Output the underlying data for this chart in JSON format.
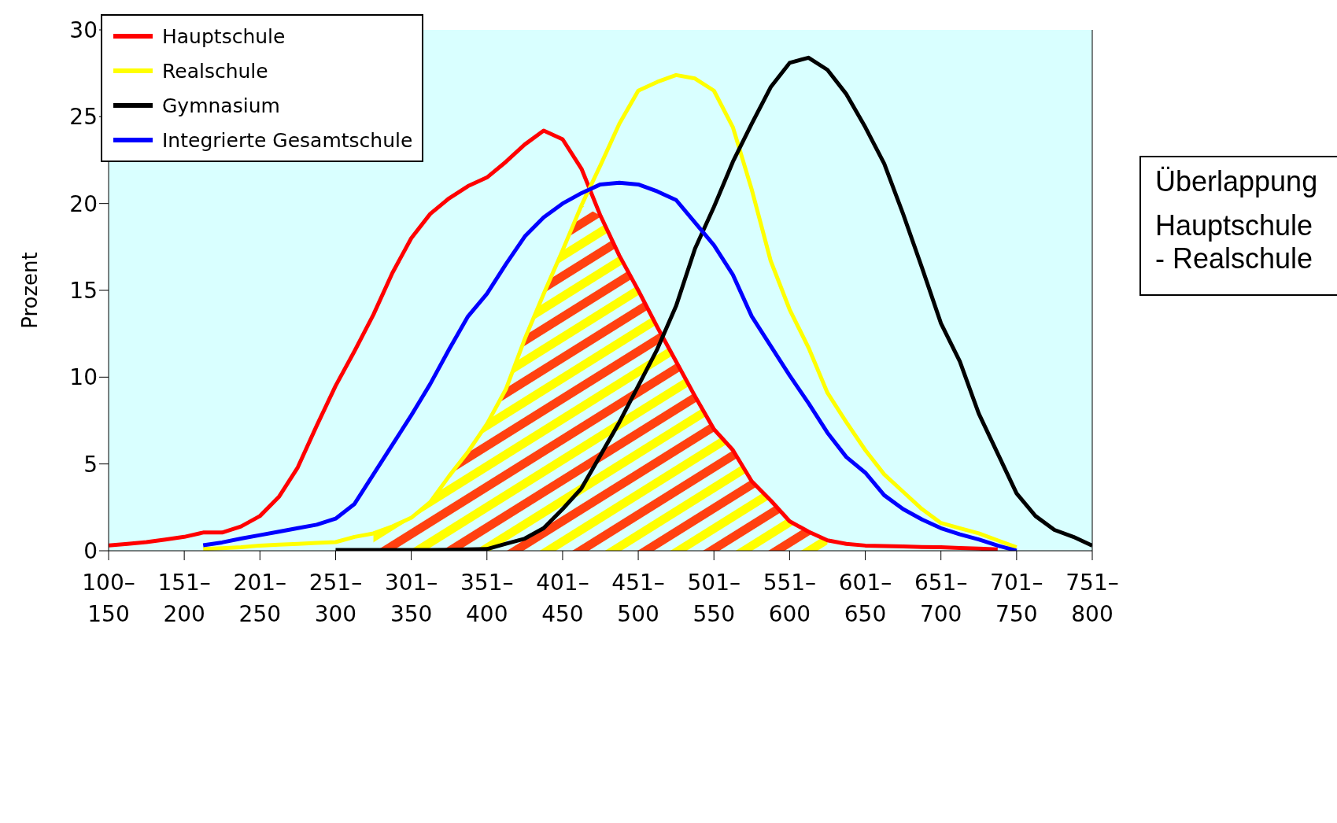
{
  "chart_data": {
    "type": "line",
    "ylabel": "Prozent",
    "annotations": [
      "Überlappung",
      "Hauptschule - Realschule"
    ],
    "categories": [
      "100–150",
      null,
      null,
      null,
      "151–200",
      null,
      null,
      null,
      "201–250",
      null,
      null,
      null,
      "251–300",
      null,
      null,
      null,
      "301–350",
      null,
      null,
      null,
      "351–400",
      null,
      null,
      null,
      "401–450",
      null,
      null,
      null,
      "451–500",
      null,
      null,
      null,
      "501–550",
      null,
      null,
      null,
      "551–600",
      null,
      null,
      null,
      "601–650",
      null,
      null,
      null,
      "651–700",
      null,
      null,
      null,
      "701–750",
      null,
      null,
      null,
      "751–800"
    ],
    "ylim": [
      0,
      30
    ],
    "yticks": [
      0,
      5,
      10,
      15,
      20,
      25,
      30
    ],
    "grid": false,
    "legend": "top left",
    "marker": "none",
    "line_style": "solid",
    "series": [
      {
        "type": "area",
        "color": "#ff4010",
        "values": [
          null,
          null,
          null,
          null,
          null,
          null,
          null,
          null,
          null,
          null,
          null,
          null,
          null,
          null,
          1.0,
          1.4,
          1.9,
          2.8,
          4.3,
          5.7,
          7.3,
          9.3,
          12.2,
          14.8,
          17.3,
          19.9,
          19.3,
          17,
          15,
          12.9,
          10.9,
          8.9,
          7,
          5.8,
          4,
          2.9,
          1.7,
          1.1,
          0.6,
          null,
          null,
          null,
          null,
          null,
          null,
          null,
          null,
          null,
          null,
          null,
          null,
          null,
          null
        ]
      },
      {
        "name": "Hauptschule",
        "color": "#ff0000",
        "values": [
          0.3,
          0.4,
          0.5,
          0.65,
          0.8,
          1.05,
          1.05,
          1.4,
          2.0,
          3.1,
          4.8,
          7.2,
          9.5,
          11.5,
          13.6,
          16,
          18,
          19.4,
          20.3,
          21.0,
          21.5,
          22.4,
          23.4,
          24.2,
          23.7,
          22,
          19.3,
          17,
          15,
          12.9,
          10.9,
          8.9,
          7,
          5.8,
          4,
          2.9,
          1.7,
          1.1,
          0.6,
          0.4,
          0.3,
          0.27,
          0.25,
          0.22,
          0.2,
          0.16,
          0.12,
          0.08,
          null,
          null,
          null,
          null,
          null
        ]
      },
      {
        "name": "Realschule",
        "color": "#ffff00",
        "values": [
          null,
          null,
          null,
          null,
          null,
          0.1,
          0.15,
          0.2,
          0.3,
          0.35,
          0.4,
          0.45,
          0.5,
          0.8,
          1.0,
          1.4,
          1.9,
          2.8,
          4.3,
          5.7,
          7.3,
          9.3,
          12.2,
          14.8,
          17.3,
          19.9,
          22.2,
          24.6,
          26.5,
          27,
          27.4,
          27.2,
          26.5,
          24.4,
          20.8,
          16.7,
          13.9,
          11.7,
          9.1,
          7.4,
          5.8,
          4.4,
          3.4,
          2.4,
          1.6,
          1.3,
          1.0,
          0.6,
          0.2,
          null,
          null,
          null,
          null
        ]
      },
      {
        "name": "Gymnasium",
        "color": "#000000",
        "values": [
          null,
          null,
          null,
          null,
          null,
          null,
          null,
          null,
          null,
          null,
          null,
          null,
          0.05,
          0.05,
          0.05,
          0.05,
          0.05,
          0.05,
          0.06,
          0.08,
          0.1,
          0.4,
          0.7,
          1.3,
          2.4,
          3.6,
          5.5,
          7.4,
          9.5,
          11.6,
          14.1,
          17.4,
          19.8,
          22.4,
          24.6,
          26.7,
          28.1,
          28.4,
          27.7,
          26.3,
          24.4,
          22.3,
          19.4,
          16.3,
          13.1,
          10.9,
          7.9,
          5.6,
          3.3,
          2.0,
          1.2,
          0.8,
          0.3
        ]
      },
      {
        "name": "Integrierte Gesamtschule",
        "color": "#0000ff",
        "values": [
          null,
          null,
          null,
          null,
          null,
          0.32,
          0.48,
          0.7,
          0.9,
          1.1,
          1.3,
          1.5,
          1.85,
          2.7,
          4.4,
          6.1,
          7.8,
          9.6,
          11.6,
          13.5,
          14.8,
          16.5,
          18.1,
          19.2,
          20.0,
          20.6,
          21.1,
          21.2,
          21.1,
          20.7,
          20.2,
          18.9,
          17.6,
          15.9,
          13.5,
          11.8,
          10.1,
          8.5,
          6.8,
          5.4,
          4.5,
          3.2,
          2.4,
          1.8,
          1.3,
          0.95,
          0.65,
          0.3,
          0,
          null,
          null,
          null,
          null
        ]
      }
    ]
  }
}
